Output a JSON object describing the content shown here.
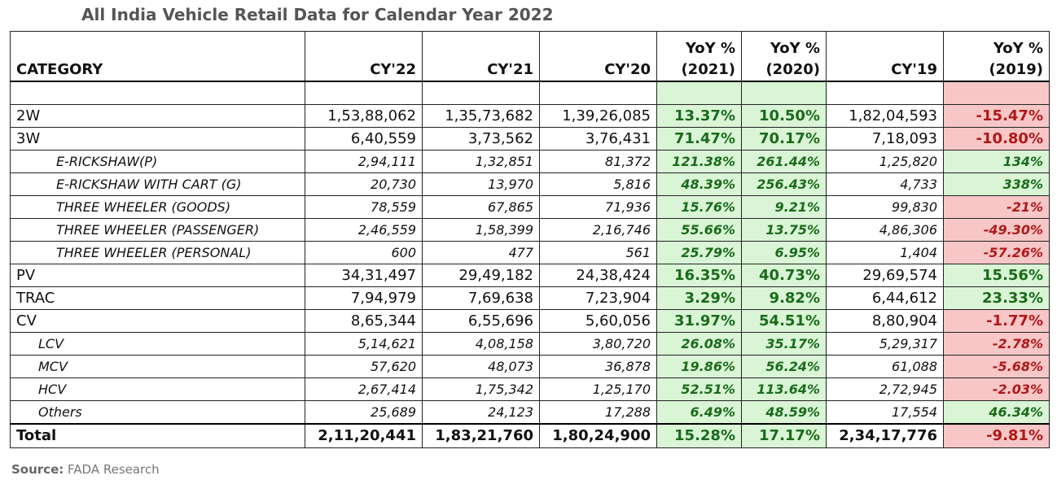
{
  "title": "All India Vehicle Retail Data for Calendar Year 2022",
  "source": {
    "label": "Source:",
    "text": " FADA Research"
  },
  "headers": {
    "category": "CATEGORY",
    "cy22": "CY'22",
    "cy21": "CY'21",
    "cy20": "CY'20",
    "yoy2021_a": "YoY %",
    "yoy2021_b": "(2021)",
    "yoy2020_a": "YoY %",
    "yoy2020_b": "(2020)",
    "cy19": "CY'19",
    "yoy2019_a": "YoY %",
    "yoy2019_b": "(2019)"
  },
  "colors": {
    "positive_bg": "#d9f5d6",
    "negative_bg": "#f7c7c7",
    "positive_text": "#1a6b1a",
    "negative_text": "#b01818"
  },
  "rows": [
    {
      "category": "2W",
      "cy22": "1,53,88,062",
      "cy21": "1,35,73,682",
      "cy20": "1,39,26,085",
      "yoy2021": "13.37%",
      "yoy2020": "10.50%",
      "cy19": "1,82,04,593",
      "yoy2019": "-15.47%"
    },
    {
      "category": "3W",
      "cy22": "6,40,559",
      "cy21": "3,73,562",
      "cy20": "3,76,431",
      "yoy2021": "71.47%",
      "yoy2020": "70.17%",
      "cy19": "7,18,093",
      "yoy2019": "-10.80%"
    },
    {
      "category": "E-RICKSHAW(P)",
      "cy22": "2,94,111",
      "cy21": "1,32,851",
      "cy20": "81,372",
      "yoy2021": "121.38%",
      "yoy2020": "261.44%",
      "cy19": "1,25,820",
      "yoy2019": "134%"
    },
    {
      "category": "E-RICKSHAW WITH CART (G)",
      "cy22": "20,730",
      "cy21": "13,970",
      "cy20": "5,816",
      "yoy2021": "48.39%",
      "yoy2020": "256.43%",
      "cy19": "4,733",
      "yoy2019": "338%"
    },
    {
      "category": "THREE WHEELER (GOODS)",
      "cy22": "78,559",
      "cy21": "67,865",
      "cy20": "71,936",
      "yoy2021": "15.76%",
      "yoy2020": "9.21%",
      "cy19": "99,830",
      "yoy2019": "-21%"
    },
    {
      "category": "THREE WHEELER (PASSENGER)",
      "cy22": "2,46,559",
      "cy21": "1,58,399",
      "cy20": "2,16,746",
      "yoy2021": "55.66%",
      "yoy2020": "13.75%",
      "cy19": "4,86,306",
      "yoy2019": "-49.30%"
    },
    {
      "category": "THREE WHEELER (PERSONAL)",
      "cy22": "600",
      "cy21": "477",
      "cy20": "561",
      "yoy2021": "25.79%",
      "yoy2020": "6.95%",
      "cy19": "1,404",
      "yoy2019": "-57.26%"
    },
    {
      "category": "PV",
      "cy22": "34,31,497",
      "cy21": "29,49,182",
      "cy20": "24,38,424",
      "yoy2021": "16.35%",
      "yoy2020": "40.73%",
      "cy19": "29,69,574",
      "yoy2019": "15.56%"
    },
    {
      "category": "TRAC",
      "cy22": "7,94,979",
      "cy21": "7,69,638",
      "cy20": "7,23,904",
      "yoy2021": "3.29%",
      "yoy2020": "9.82%",
      "cy19": "6,44,612",
      "yoy2019": "23.33%"
    },
    {
      "category": "CV",
      "cy22": "8,65,344",
      "cy21": "6,55,696",
      "cy20": "5,60,056",
      "yoy2021": "31.97%",
      "yoy2020": "54.51%",
      "cy19": "8,80,904",
      "yoy2019": "-1.77%"
    },
    {
      "category": "LCV",
      "cy22": "5,14,621",
      "cy21": "4,08,158",
      "cy20": "3,80,720",
      "yoy2021": "26.08%",
      "yoy2020": "35.17%",
      "cy19": "5,29,317",
      "yoy2019": "-2.78%"
    },
    {
      "category": "MCV",
      "cy22": "57,620",
      "cy21": "48,073",
      "cy20": "36,878",
      "yoy2021": "19.86%",
      "yoy2020": "56.24%",
      "cy19": "61,088",
      "yoy2019": "-5.68%"
    },
    {
      "category": "HCV",
      "cy22": "2,67,414",
      "cy21": "1,75,342",
      "cy20": "1,25,170",
      "yoy2021": "52.51%",
      "yoy2020": "113.64%",
      "cy19": "2,72,945",
      "yoy2019": "-2.03%"
    },
    {
      "category": "Others",
      "cy22": "25,689",
      "cy21": "24,123",
      "cy20": "17,288",
      "yoy2021": "6.49%",
      "yoy2020": "48.59%",
      "cy19": "17,554",
      "yoy2019": "46.34%"
    },
    {
      "category": "Total",
      "cy22": "2,11,20,441",
      "cy21": "1,83,21,760",
      "cy20": "1,80,24,900",
      "yoy2021": "15.28%",
      "yoy2020": "17.17%",
      "cy19": "2,34,17,776",
      "yoy2019": "-9.81%"
    }
  ]
}
